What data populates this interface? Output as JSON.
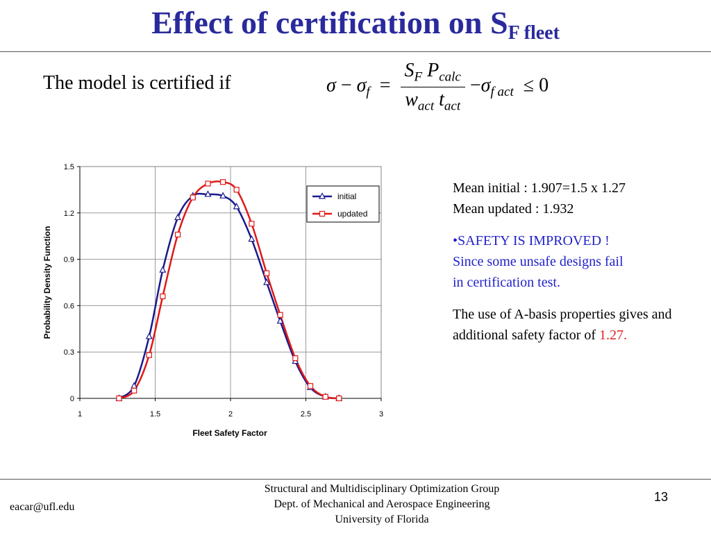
{
  "slide": {
    "title_main": "Effect of certification on S",
    "title_sub": "F fleet",
    "intro": "The model is certified if",
    "equation": {
      "sigma": "σ",
      "minus": "−",
      "sigma_f": "σ",
      "f": "f",
      "equals": "=",
      "S": "S",
      "F": "F",
      "P": "P",
      "calc": "calc",
      "w": "w",
      "act": "act",
      "t": "t",
      "act2": "act",
      "minus2": "−",
      "sigma3": "σ",
      "f2": "f",
      "act3": "act",
      "leq": "≤ 0"
    },
    "notes": {
      "mean_initial": "Mean initial : 1.907=1.5 x 1.27",
      "mean_updated": "Mean updated : 1.932",
      "safety_line1": "•SAFETY IS IMPROVED !",
      "safety_line2": "Since some unsafe designs fail",
      "safety_line3": "in certification test.",
      "abasis_text": "The use of A-basis properties gives and additional safety factor of",
      "abasis_value": "1.27."
    },
    "footer": {
      "email": "eacar@ufl.edu",
      "line1": "Structural and Multidisciplinary Optimization Group",
      "line2": "Dept. of Mechanical and Aerospace Engineering",
      "line3": "University of Florida",
      "page": "13"
    }
  },
  "chart_data": {
    "type": "line",
    "xlabel": "Fleet Safety Factor",
    "ylabel": "Probability Density Function",
    "xlim": [
      1,
      3
    ],
    "ylim": [
      0,
      1.5
    ],
    "xticks": [
      1,
      1.5,
      2,
      2.5,
      3
    ],
    "xtick_labels": [
      "1",
      "1.5",
      "2",
      "2.5",
      "3"
    ],
    "yticks": [
      0,
      0.3,
      0.6,
      0.9,
      1.2,
      1.5
    ],
    "ytick_labels": [
      "0",
      "0.3",
      "0.6",
      "0.9",
      "1.2",
      "1.5"
    ],
    "grid": true,
    "legend_position": "upper-right",
    "series": [
      {
        "name": "initial",
        "color": "#1a1a8c",
        "marker": "triangle",
        "points": [
          [
            1.26,
            0.0
          ],
          [
            1.36,
            0.08
          ],
          [
            1.46,
            0.4
          ],
          [
            1.55,
            0.83
          ],
          [
            1.65,
            1.17
          ],
          [
            1.75,
            1.31
          ],
          [
            1.85,
            1.32
          ],
          [
            1.95,
            1.31
          ],
          [
            2.04,
            1.24
          ],
          [
            2.14,
            1.03
          ],
          [
            2.24,
            0.75
          ],
          [
            2.33,
            0.5
          ],
          [
            2.43,
            0.24
          ],
          [
            2.53,
            0.07
          ],
          [
            2.63,
            0.01
          ],
          [
            2.72,
            0.0
          ]
        ]
      },
      {
        "name": "updated",
        "color": "#e01818",
        "marker": "square",
        "points": [
          [
            1.26,
            0.0
          ],
          [
            1.36,
            0.05
          ],
          [
            1.46,
            0.28
          ],
          [
            1.55,
            0.66
          ],
          [
            1.65,
            1.06
          ],
          [
            1.75,
            1.3
          ],
          [
            1.85,
            1.39
          ],
          [
            1.95,
            1.4
          ],
          [
            2.04,
            1.35
          ],
          [
            2.14,
            1.13
          ],
          [
            2.24,
            0.81
          ],
          [
            2.33,
            0.54
          ],
          [
            2.43,
            0.26
          ],
          [
            2.53,
            0.08
          ],
          [
            2.63,
            0.01
          ],
          [
            2.72,
            0.0
          ]
        ]
      }
    ]
  }
}
